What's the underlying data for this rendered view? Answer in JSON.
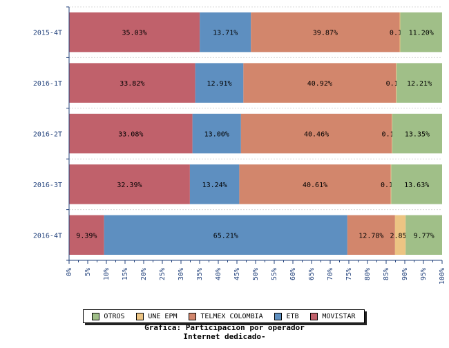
{
  "chart_data": {
    "type": "bar",
    "orientation": "horizontal",
    "stacked": true,
    "categories": [
      "2015-4T",
      "2016-1T",
      "2016-2T",
      "2016-3T",
      "2016-4T"
    ],
    "series": [
      {
        "name": "MOVISTAR",
        "color": "#c0616b",
        "values": [
          35.03,
          33.82,
          33.08,
          32.39,
          9.39
        ]
      },
      {
        "name": "ETB",
        "color": "#5e8fc0",
        "values": [
          13.71,
          12.91,
          13.0,
          13.24,
          65.21
        ]
      },
      {
        "name": "TELMEX COLOMBIA",
        "color": "#d2866c",
        "values": [
          39.87,
          40.92,
          40.46,
          40.61,
          12.78
        ]
      },
      {
        "name": "UNE EPM",
        "color": "#ecc483",
        "values": [
          0.18,
          0.14,
          0.11,
          0.13,
          2.85
        ]
      },
      {
        "name": "OTROS",
        "color": "#a0bf88",
        "values": [
          11.2,
          12.21,
          13.35,
          13.63,
          9.77
        ]
      }
    ],
    "xlim": [
      0,
      100
    ],
    "xticks": [
      "0%",
      "5%",
      "10%",
      "15%",
      "20%",
      "25%",
      "30%",
      "35%",
      "40%",
      "45%",
      "50%",
      "55%",
      "60%",
      "65%",
      "70%",
      "75%",
      "80%",
      "85%",
      "90%",
      "95%",
      "100%"
    ],
    "legend_order": [
      "OTROS",
      "UNE EPM",
      "TELMEX COLOMBIA",
      "ETB",
      "MOVISTAR"
    ],
    "legend_position": "bottom",
    "title": "Grafica: Participacion por operador",
    "subtitle": "Internet dedicado-",
    "grid": true
  }
}
